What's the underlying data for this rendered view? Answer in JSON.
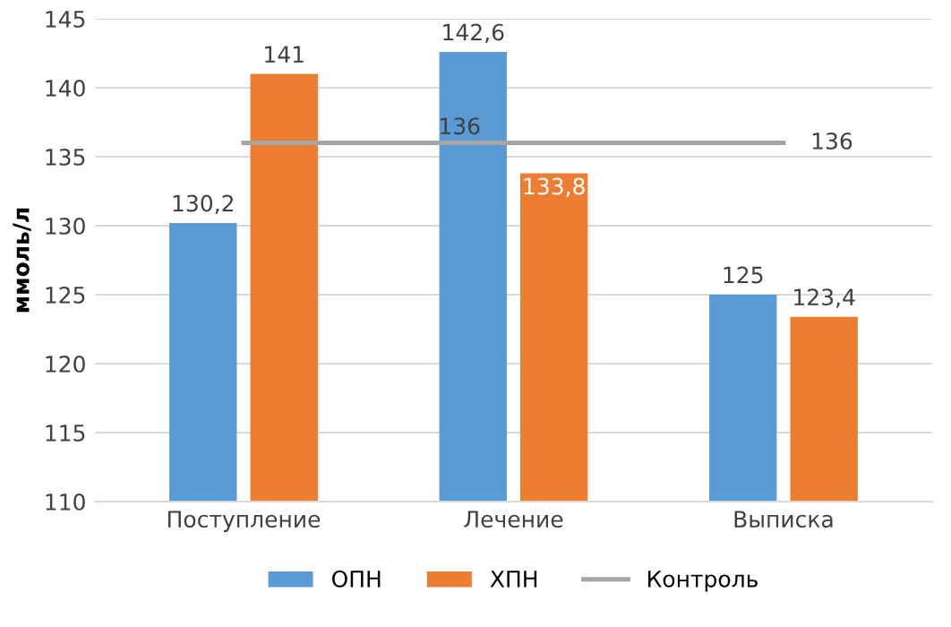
{
  "chart_data": {
    "type": "bar",
    "ylabel": "ммоль/л",
    "categories": [
      "Поступление",
      "Лечение",
      "Выписка"
    ],
    "series": [
      {
        "name": "ОПН",
        "color": "#5b9bd5",
        "values": [
          130.2,
          142.6,
          125
        ],
        "value_labels": [
          "130,2",
          "142,6",
          "125"
        ]
      },
      {
        "name": "ХПН",
        "color": "#ed7d31",
        "values": [
          141,
          133.8,
          123.4
        ],
        "value_labels": [
          "141",
          "133,8",
          "123,4"
        ]
      },
      {
        "name": "Контроль",
        "type": "line",
        "color": "#a5a5a5",
        "values": [
          136,
          136,
          136
        ],
        "value_labels": [
          null,
          "136",
          "136"
        ]
      }
    ],
    "ylim": [
      110,
      145
    ],
    "yticks": [
      110,
      115,
      120,
      125,
      130,
      135,
      140,
      145
    ],
    "grid": "y",
    "legend": "bottom"
  }
}
